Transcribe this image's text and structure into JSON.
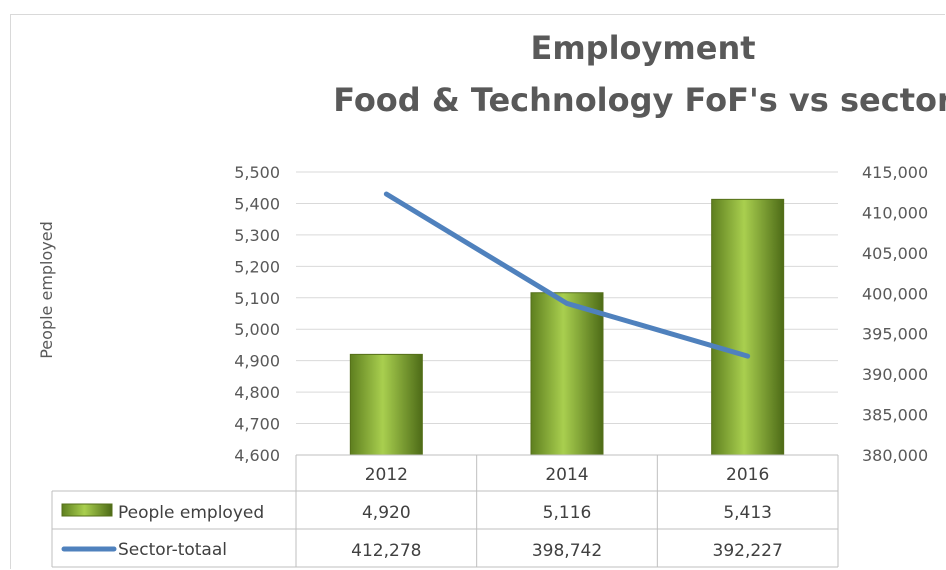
{
  "chart_data": {
    "type": "bar",
    "title": "Employment",
    "subtitle": "Food & Technology FoF's vs sector",
    "ylabel": "People employed",
    "categories": [
      "2012",
      "2014",
      "2016"
    ],
    "ylim": [
      4600,
      5500
    ],
    "y2lim": [
      380000,
      415000
    ],
    "y_ticks": [
      "4,600",
      "4,700",
      "4,800",
      "4,900",
      "5,000",
      "5,100",
      "5,200",
      "5,300",
      "5,400",
      "5,500"
    ],
    "y2_ticks": [
      "380,000",
      "385,000",
      "390,000",
      "395,000",
      "400,000",
      "405,000",
      "410,000",
      "415,000"
    ],
    "grid": true,
    "legend_placement": "data-table",
    "series": [
      {
        "name": "People employed",
        "type": "bar",
        "axis": "left",
        "values": [
          4920,
          5116,
          5413
        ],
        "labels": [
          "4,920",
          "5,116",
          "5,413"
        ],
        "color": "#8db33a"
      },
      {
        "name": "Sector-totaal",
        "type": "line",
        "axis": "right",
        "values": [
          412278,
          398742,
          392227
        ],
        "labels": [
          "412,278",
          "398,742",
          "392,227"
        ],
        "color": "#4f81bd"
      }
    ]
  }
}
